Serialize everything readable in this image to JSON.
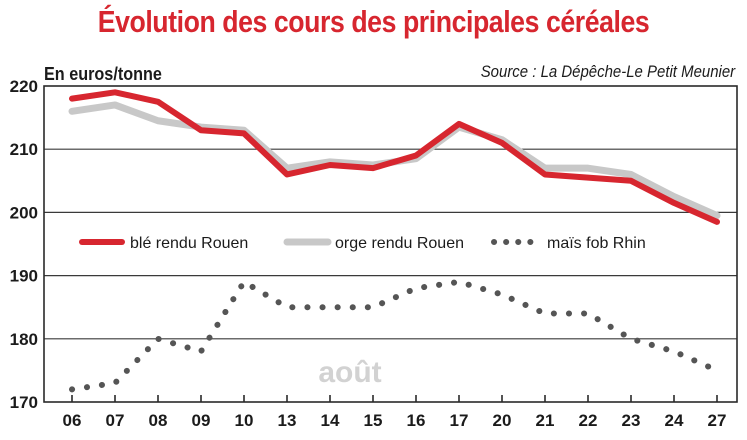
{
  "chart_data": {
    "type": "line",
    "title": "Évolution des cours des principales céréales",
    "ylabel": "En euros/tonne",
    "source": "Source : La Dépêche-Le Petit Meunier",
    "annotation": "août",
    "categories": [
      "06",
      "07",
      "08",
      "09",
      "10",
      "13",
      "14",
      "15",
      "16",
      "17",
      "20",
      "21",
      "22",
      "23",
      "24",
      "27"
    ],
    "ylim": [
      170,
      220
    ],
    "yticks": [
      170,
      180,
      190,
      200,
      210,
      220
    ],
    "grid": true,
    "legend_position": "center",
    "series": [
      {
        "name": "blé rendu Rouen",
        "color": "#d7262f",
        "style": "solid",
        "values": [
          218,
          219,
          217.5,
          213,
          212.5,
          206,
          207.5,
          207,
          209,
          214,
          211,
          206,
          205.5,
          205,
          201.5,
          198.5
        ]
      },
      {
        "name": "orge rendu Rouen",
        "color": "#c8c8c8",
        "style": "solid",
        "values": [
          216,
          217,
          214.5,
          213.5,
          213,
          207,
          208,
          207.5,
          208.5,
          213.5,
          211.5,
          207,
          207,
          206,
          202.5,
          199.5
        ]
      },
      {
        "name": "maïs fob Rhin",
        "color": "#555555",
        "style": "dotted",
        "values": [
          172,
          173,
          180,
          178,
          189,
          185,
          185,
          185,
          188,
          189,
          187,
          184,
          184,
          180,
          178,
          175
        ]
      }
    ]
  }
}
